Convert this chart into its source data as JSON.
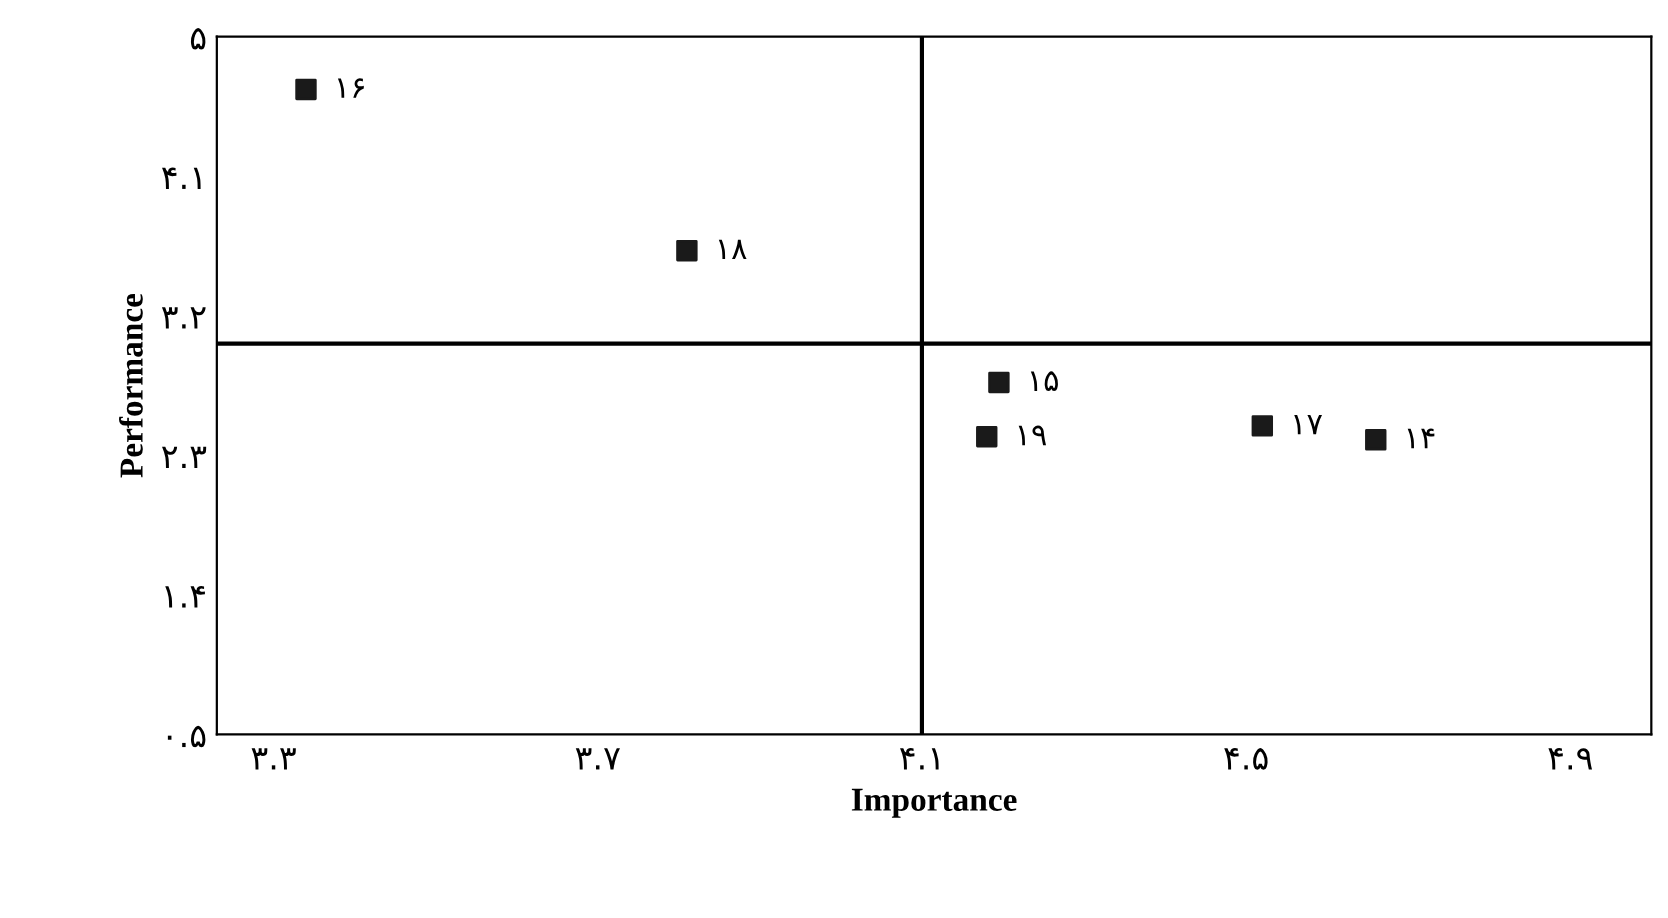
{
  "chart_data": {
    "type": "scatter",
    "xlabel": "Importance",
    "ylabel": "Performance",
    "x": [
      3.34,
      3.81,
      4.195,
      4.18,
      4.52,
      4.66
    ],
    "values": [
      4.66,
      3.62,
      2.77,
      2.42,
      2.49,
      2.4
    ],
    "color": "#1a1a1a",
    "marker": "square",
    "grid": false,
    "legend": false,
    "xlim": [
      3.23,
      5.0
    ],
    "ylim": [
      0.5,
      5.0
    ],
    "xticks": [
      {
        "value": 3.3,
        "label": "۳.۳"
      },
      {
        "value": 3.7,
        "label": "۳.۷"
      },
      {
        "value": 4.1,
        "label": "۴.۱"
      },
      {
        "value": 4.5,
        "label": "۴.۵"
      },
      {
        "value": 4.9,
        "label": "۴.۹"
      }
    ],
    "yticks": [
      {
        "value": 0.5,
        "label": "۰.۵"
      },
      {
        "value": 1.4,
        "label": "۱.۴"
      },
      {
        "value": 2.3,
        "label": "۲.۳"
      },
      {
        "value": 3.2,
        "label": "۳.۲"
      },
      {
        "value": 4.1,
        "label": "۴.۱"
      },
      {
        "value": 5.0,
        "label": "۵"
      }
    ],
    "ref_lines": [
      {
        "axis": "x",
        "value": 4.1,
        "color": "#000000"
      },
      {
        "axis": "y",
        "value": 3.02,
        "color": "#000000"
      }
    ],
    "annotations": [
      {
        "text": "۱۶",
        "x": 3.34,
        "y": 4.66
      },
      {
        "text": "۱۸",
        "x": 3.81,
        "y": 3.62
      },
      {
        "text": "۱۵",
        "x": 4.195,
        "y": 2.77
      },
      {
        "text": "۱۹",
        "x": 4.18,
        "y": 2.42
      },
      {
        "text": "۱۷",
        "x": 4.52,
        "y": 2.49
      },
      {
        "text": "۱۴",
        "x": 4.66,
        "y": 2.4
      }
    ]
  }
}
